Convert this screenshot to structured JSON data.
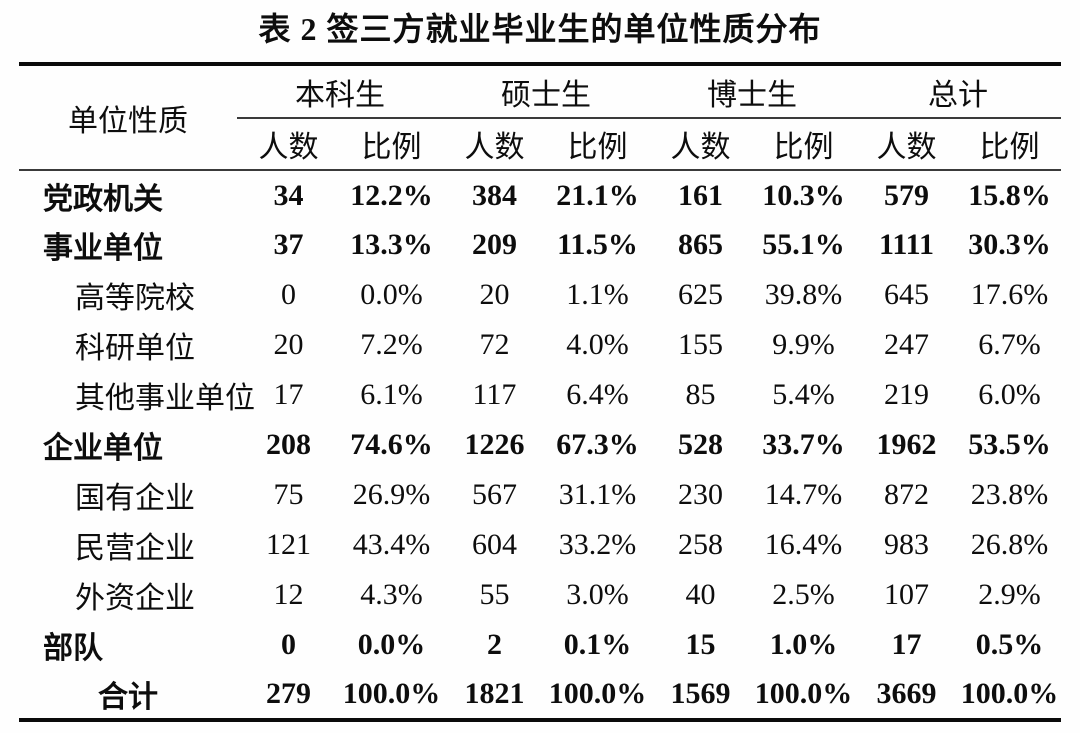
{
  "title": "表 2 签三方就业毕业生的单位性质分布",
  "table": {
    "corner_header": "单位性质",
    "group_headers": [
      "本科生",
      "硕士生",
      "博士生",
      "总计"
    ],
    "sub_headers": [
      "人数",
      "比例"
    ],
    "rows": [
      {
        "label": "党政机关",
        "style": "category",
        "values": [
          "34",
          "12.2%",
          "384",
          "21.1%",
          "161",
          "10.3%",
          "579",
          "15.8%"
        ]
      },
      {
        "label": "事业单位",
        "style": "category",
        "values": [
          "37",
          "13.3%",
          "209",
          "11.5%",
          "865",
          "55.1%",
          "1111",
          "30.3%"
        ]
      },
      {
        "label": "高等院校",
        "style": "sub",
        "values": [
          "0",
          "0.0%",
          "20",
          "1.1%",
          "625",
          "39.8%",
          "645",
          "17.6%"
        ]
      },
      {
        "label": "科研单位",
        "style": "sub",
        "values": [
          "20",
          "7.2%",
          "72",
          "4.0%",
          "155",
          "9.9%",
          "247",
          "6.7%"
        ]
      },
      {
        "label": "其他事业单位",
        "style": "sub",
        "values": [
          "17",
          "6.1%",
          "117",
          "6.4%",
          "85",
          "5.4%",
          "219",
          "6.0%"
        ]
      },
      {
        "label": "企业单位",
        "style": "category",
        "values": [
          "208",
          "74.6%",
          "1226",
          "67.3%",
          "528",
          "33.7%",
          "1962",
          "53.5%"
        ]
      },
      {
        "label": "国有企业",
        "style": "sub",
        "values": [
          "75",
          "26.9%",
          "567",
          "31.1%",
          "230",
          "14.7%",
          "872",
          "23.8%"
        ]
      },
      {
        "label": "民营企业",
        "style": "sub",
        "values": [
          "121",
          "43.4%",
          "604",
          "33.2%",
          "258",
          "16.4%",
          "983",
          "26.8%"
        ]
      },
      {
        "label": "外资企业",
        "style": "sub",
        "values": [
          "12",
          "4.3%",
          "55",
          "3.0%",
          "40",
          "2.5%",
          "107",
          "2.9%"
        ]
      },
      {
        "label": "部队",
        "style": "category",
        "values": [
          "0",
          "0.0%",
          "2",
          "0.1%",
          "15",
          "1.0%",
          "17",
          "0.5%"
        ]
      },
      {
        "label": "合计",
        "style": "total",
        "values": [
          "279",
          "100.0%",
          "1821",
          "100.0%",
          "1569",
          "100.0%",
          "3669",
          "100.0%"
        ]
      }
    ]
  },
  "colors": {
    "text": "#0d0d0d",
    "thick_rule": "#0a0a0a",
    "thin_rule": "#3a3a3a",
    "background": "#fefefe"
  }
}
